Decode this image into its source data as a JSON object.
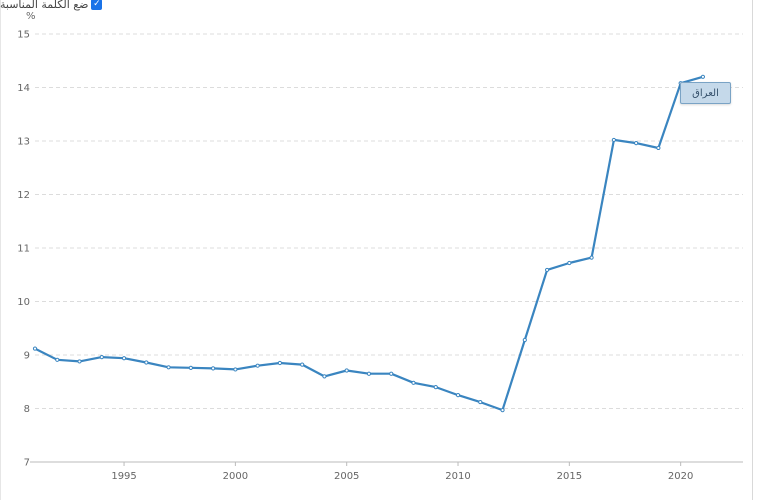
{
  "header": {
    "checkbox_label": "ضع الكلمة المناسبة",
    "checkbox_checked": true,
    "checkmark_glyph": "✓"
  },
  "chart_data": {
    "type": "line",
    "title": "",
    "xlabel": "",
    "ylabel": "%",
    "xlim": [
      1991,
      2022.8
    ],
    "ylim": [
      7,
      15
    ],
    "yticks": [
      7,
      8,
      9,
      10,
      11,
      12,
      13,
      14,
      15
    ],
    "xticks": [
      1995,
      2000,
      2005,
      2010,
      2015,
      2020
    ],
    "grid": true,
    "series": [
      {
        "name": "العراق",
        "color": "#3a85c0",
        "x": [
          1991,
          1992,
          1993,
          1994,
          1995,
          1996,
          1997,
          1998,
          1999,
          2000,
          2001,
          2002,
          2003,
          2004,
          2005,
          2006,
          2007,
          2008,
          2009,
          2010,
          2011,
          2012,
          2013,
          2014,
          2015,
          2016,
          2017,
          2018,
          2019,
          2020,
          2021
        ],
        "y": [
          9.12,
          8.91,
          8.88,
          8.96,
          8.94,
          8.86,
          8.77,
          8.76,
          8.75,
          8.73,
          8.8,
          8.85,
          8.82,
          8.6,
          8.71,
          8.65,
          8.65,
          8.48,
          8.4,
          8.25,
          8.12,
          7.97,
          9.28,
          10.59,
          10.72,
          10.82,
          13.02,
          12.96,
          12.87,
          14.08,
          14.2
        ]
      }
    ]
  }
}
